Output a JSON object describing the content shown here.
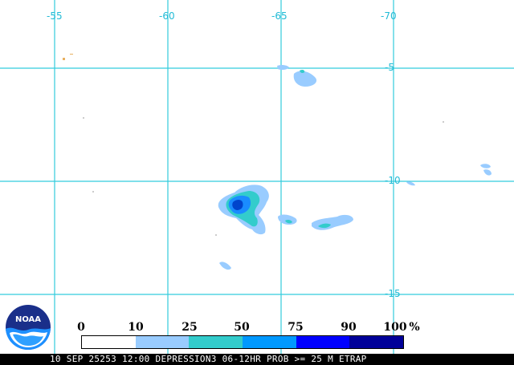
{
  "map": {
    "lon_labels": [
      "-55",
      "-60",
      "-65",
      "-70"
    ],
    "lat_labels": [
      "-5",
      "-10",
      "-15"
    ],
    "grid_color": "#33ccdd",
    "background": "#ffffff"
  },
  "legend": {
    "labels": [
      "0",
      "10",
      "25",
      "50",
      "75",
      "90",
      "100",
      "%"
    ],
    "colors": [
      "#ffffff",
      "#99ccff",
      "#33cccc",
      "#0099ff",
      "#0000ff",
      "#000099"
    ]
  },
  "footer": {
    "text": "10 SEP 25253 12:00 DEPRESSION3 06-12HR PROB >= 25 M ETRAP"
  },
  "logo": {
    "text": "NOAA",
    "icon": "noaa-logo-icon"
  },
  "precip_colors": {
    "light": "#99ccff",
    "teal": "#33cccc",
    "medium": "#1a8cff",
    "dark": "#0044cc"
  }
}
